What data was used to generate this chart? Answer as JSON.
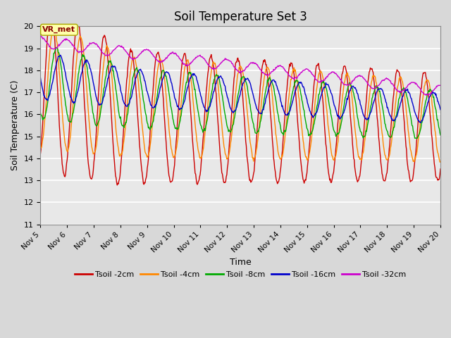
{
  "title": "Soil Temperature Set 3",
  "xlabel": "Time",
  "ylabel": "Soil Temperature (C)",
  "ylim": [
    11.0,
    20.0
  ],
  "yticks": [
    11.0,
    12.0,
    13.0,
    14.0,
    15.0,
    16.0,
    17.0,
    18.0,
    19.0,
    20.0
  ],
  "xlim_days": [
    5,
    20
  ],
  "xtick_days": [
    5,
    6,
    7,
    8,
    9,
    10,
    11,
    12,
    13,
    14,
    15,
    16,
    17,
    18,
    19,
    20
  ],
  "xtick_labels": [
    "Nov 5",
    "Nov 6",
    "Nov 7",
    "Nov 8",
    "Nov 9",
    "Nov 10",
    "Nov 11",
    "Nov 12",
    "Nov 13",
    "Nov 14",
    "Nov 15",
    "Nov 16",
    "Nov 17",
    "Nov 18",
    "Nov 19",
    "Nov 20"
  ],
  "legend_labels": [
    "Tsoil -2cm",
    "Tsoil -4cm",
    "Tsoil -8cm",
    "Tsoil -16cm",
    "Tsoil -32cm"
  ],
  "legend_colors": [
    "#cc0000",
    "#ff8800",
    "#00aa00",
    "#0000cc",
    "#cc00cc"
  ],
  "annotation_text": "VR_met",
  "bg_color": "#d8d8d8",
  "plot_bg_color": "#e8e8e8",
  "grid_color": "#ffffff",
  "title_fontsize": 12
}
